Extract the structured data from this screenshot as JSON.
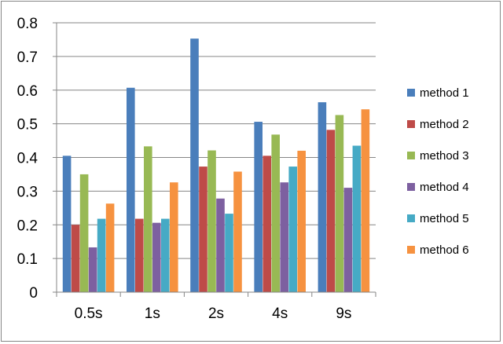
{
  "chart_data": {
    "type": "bar",
    "title": "",
    "xlabel": "",
    "ylabel": "",
    "categories": [
      "0.5s",
      "1s",
      "2s",
      "4s",
      "9s"
    ],
    "ylim": [
      0,
      0.8
    ],
    "yticks": [
      "0",
      "0.1",
      "0.2",
      "0.3",
      "0.4",
      "0.5",
      "0.6",
      "0.7",
      "0.8"
    ],
    "grid": true,
    "legend_position": "right",
    "series": [
      {
        "name": "method 1",
        "color": "#4a7ebb",
        "values": [
          0.405,
          0.607,
          0.753,
          0.506,
          0.564
        ]
      },
      {
        "name": "method 2",
        "color": "#be4b48",
        "values": [
          0.2,
          0.218,
          0.373,
          0.405,
          0.482
        ]
      },
      {
        "name": "method 3",
        "color": "#98b954",
        "values": [
          0.35,
          0.433,
          0.421,
          0.468,
          0.526
        ]
      },
      {
        "name": "method 4",
        "color": "#7d60a0",
        "values": [
          0.133,
          0.206,
          0.278,
          0.326,
          0.31
        ]
      },
      {
        "name": "method 5",
        "color": "#46aac5",
        "values": [
          0.218,
          0.218,
          0.233,
          0.373,
          0.435
        ]
      },
      {
        "name": "method 6",
        "color": "#f69240",
        "values": [
          0.263,
          0.326,
          0.358,
          0.42,
          0.543
        ]
      }
    ]
  }
}
